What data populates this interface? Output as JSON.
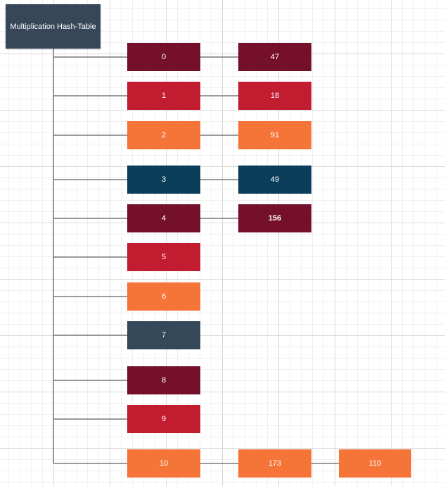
{
  "root": {
    "label": "Multiplication Hash-Table"
  },
  "colors": {
    "maroon": "#74102a",
    "red": "#c11c30",
    "orange": "#f57538",
    "teal": "#0b3e5a",
    "slate": "#354859",
    "root": "#374759",
    "connector": "#7a7a7a"
  },
  "buckets": [
    {
      "index": "0",
      "color": "maroon",
      "chain": [
        "47"
      ]
    },
    {
      "index": "1",
      "color": "red",
      "chain": [
        "18"
      ]
    },
    {
      "index": "2",
      "color": "orange",
      "chain": [
        "91"
      ]
    },
    {
      "index": "3",
      "color": "teal",
      "chain": [
        "49"
      ]
    },
    {
      "index": "4",
      "color": "maroon",
      "chain": [
        "156"
      ]
    },
    {
      "index": "5",
      "color": "red",
      "chain": []
    },
    {
      "index": "6",
      "color": "orange",
      "chain": []
    },
    {
      "index": "7",
      "color": "slate",
      "chain": []
    },
    {
      "index": "8",
      "color": "maroon",
      "chain": []
    },
    {
      "index": "9",
      "color": "red",
      "chain": []
    },
    {
      "index": "10",
      "color": "orange",
      "chain": [
        "173",
        "110"
      ]
    }
  ]
}
